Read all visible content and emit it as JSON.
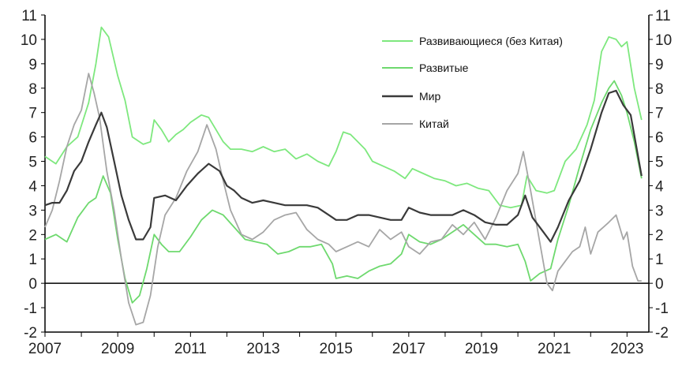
{
  "chart_data": {
    "type": "line",
    "title": "",
    "xlabel": "",
    "ylabel": "",
    "xlim": [
      2007.0,
      2023.6
    ],
    "ylim": [
      -2,
      11
    ],
    "x_ticks": [
      "2007",
      "2009",
      "2011",
      "2013",
      "2015",
      "2017",
      "2019",
      "2021",
      "2023"
    ],
    "y_ticks": [
      "-2",
      "-1",
      "0",
      "1",
      "2",
      "3",
      "4",
      "5",
      "6",
      "7",
      "8",
      "9",
      "10",
      "11"
    ],
    "grid": false,
    "legend_position": "top-right",
    "series": [
      {
        "name": "Развивающиеся (без Китая)",
        "color": "#7ee87e",
        "points": [
          [
            2007.0,
            5.2
          ],
          [
            2007.3,
            4.9
          ],
          [
            2007.6,
            5.6
          ],
          [
            2007.9,
            6.0
          ],
          [
            2008.2,
            7.4
          ],
          [
            2008.4,
            9.0
          ],
          [
            2008.55,
            10.5
          ],
          [
            2008.75,
            10.1
          ],
          [
            2009.0,
            8.5
          ],
          [
            2009.2,
            7.5
          ],
          [
            2009.4,
            6.0
          ],
          [
            2009.7,
            5.7
          ],
          [
            2009.9,
            5.8
          ],
          [
            2010.0,
            6.7
          ],
          [
            2010.2,
            6.3
          ],
          [
            2010.4,
            5.8
          ],
          [
            2010.6,
            6.1
          ],
          [
            2010.8,
            6.3
          ],
          [
            2011.0,
            6.6
          ],
          [
            2011.3,
            6.9
          ],
          [
            2011.5,
            6.8
          ],
          [
            2011.7,
            6.3
          ],
          [
            2011.9,
            5.8
          ],
          [
            2012.1,
            5.5
          ],
          [
            2012.4,
            5.5
          ],
          [
            2012.7,
            5.4
          ],
          [
            2013.0,
            5.6
          ],
          [
            2013.3,
            5.4
          ],
          [
            2013.6,
            5.5
          ],
          [
            2013.9,
            5.1
          ],
          [
            2014.2,
            5.3
          ],
          [
            2014.5,
            5.0
          ],
          [
            2014.8,
            4.8
          ],
          [
            2015.0,
            5.4
          ],
          [
            2015.2,
            6.2
          ],
          [
            2015.4,
            6.1
          ],
          [
            2015.6,
            5.8
          ],
          [
            2015.8,
            5.5
          ],
          [
            2016.0,
            5.0
          ],
          [
            2016.3,
            4.8
          ],
          [
            2016.6,
            4.6
          ],
          [
            2016.9,
            4.3
          ],
          [
            2017.1,
            4.7
          ],
          [
            2017.4,
            4.5
          ],
          [
            2017.7,
            4.3
          ],
          [
            2018.0,
            4.2
          ],
          [
            2018.3,
            4.0
          ],
          [
            2018.6,
            4.1
          ],
          [
            2018.9,
            3.9
          ],
          [
            2019.2,
            3.8
          ],
          [
            2019.5,
            3.2
          ],
          [
            2019.8,
            3.1
          ],
          [
            2020.1,
            3.2
          ],
          [
            2020.25,
            4.4
          ],
          [
            2020.5,
            3.8
          ],
          [
            2020.8,
            3.7
          ],
          [
            2021.0,
            3.8
          ],
          [
            2021.3,
            5.0
          ],
          [
            2021.6,
            5.5
          ],
          [
            2021.9,
            6.5
          ],
          [
            2022.1,
            7.5
          ],
          [
            2022.3,
            9.5
          ],
          [
            2022.5,
            10.1
          ],
          [
            2022.7,
            10.0
          ],
          [
            2022.85,
            9.7
          ],
          [
            2023.0,
            9.9
          ],
          [
            2023.2,
            8.0
          ],
          [
            2023.4,
            6.7
          ]
        ]
      },
      {
        "name": "Развитые",
        "color": "#6ed96e",
        "points": [
          [
            2007.0,
            1.8
          ],
          [
            2007.3,
            2.0
          ],
          [
            2007.6,
            1.7
          ],
          [
            2007.9,
            2.7
          ],
          [
            2008.2,
            3.3
          ],
          [
            2008.4,
            3.5
          ],
          [
            2008.6,
            4.4
          ],
          [
            2008.8,
            3.7
          ],
          [
            2009.0,
            1.8
          ],
          [
            2009.2,
            0.2
          ],
          [
            2009.4,
            -0.8
          ],
          [
            2009.6,
            -0.5
          ],
          [
            2009.8,
            0.6
          ],
          [
            2010.0,
            2.0
          ],
          [
            2010.2,
            1.6
          ],
          [
            2010.4,
            1.3
          ],
          [
            2010.7,
            1.3
          ],
          [
            2011.0,
            1.9
          ],
          [
            2011.3,
            2.6
          ],
          [
            2011.6,
            3.0
          ],
          [
            2011.9,
            2.8
          ],
          [
            2012.2,
            2.3
          ],
          [
            2012.5,
            1.8
          ],
          [
            2012.8,
            1.7
          ],
          [
            2013.1,
            1.6
          ],
          [
            2013.4,
            1.2
          ],
          [
            2013.7,
            1.3
          ],
          [
            2014.0,
            1.5
          ],
          [
            2014.3,
            1.5
          ],
          [
            2014.6,
            1.6
          ],
          [
            2014.9,
            0.8
          ],
          [
            2015.0,
            0.2
          ],
          [
            2015.3,
            0.3
          ],
          [
            2015.6,
            0.2
          ],
          [
            2015.9,
            0.5
          ],
          [
            2016.2,
            0.7
          ],
          [
            2016.5,
            0.8
          ],
          [
            2016.8,
            1.2
          ],
          [
            2017.0,
            2.0
          ],
          [
            2017.3,
            1.7
          ],
          [
            2017.6,
            1.6
          ],
          [
            2017.9,
            1.8
          ],
          [
            2018.2,
            2.1
          ],
          [
            2018.5,
            2.4
          ],
          [
            2018.8,
            2.0
          ],
          [
            2019.1,
            1.6
          ],
          [
            2019.4,
            1.6
          ],
          [
            2019.7,
            1.5
          ],
          [
            2020.0,
            1.6
          ],
          [
            2020.2,
            0.9
          ],
          [
            2020.35,
            0.1
          ],
          [
            2020.6,
            0.4
          ],
          [
            2020.9,
            0.6
          ],
          [
            2021.1,
            1.8
          ],
          [
            2021.4,
            3.2
          ],
          [
            2021.7,
            4.8
          ],
          [
            2022.0,
            6.3
          ],
          [
            2022.3,
            7.4
          ],
          [
            2022.5,
            8.0
          ],
          [
            2022.65,
            8.3
          ],
          [
            2022.85,
            7.7
          ],
          [
            2023.0,
            7.0
          ],
          [
            2023.2,
            5.8
          ],
          [
            2023.4,
            4.3
          ]
        ]
      },
      {
        "name": "Мир",
        "color": "#3a3a3a",
        "points": [
          [
            2007.0,
            3.2
          ],
          [
            2007.2,
            3.3
          ],
          [
            2007.4,
            3.3
          ],
          [
            2007.6,
            3.8
          ],
          [
            2007.8,
            4.6
          ],
          [
            2008.0,
            5.0
          ],
          [
            2008.2,
            5.8
          ],
          [
            2008.4,
            6.5
          ],
          [
            2008.55,
            7.0
          ],
          [
            2008.7,
            6.4
          ],
          [
            2008.9,
            5.0
          ],
          [
            2009.1,
            3.6
          ],
          [
            2009.3,
            2.6
          ],
          [
            2009.5,
            1.8
          ],
          [
            2009.7,
            1.8
          ],
          [
            2009.9,
            2.3
          ],
          [
            2010.0,
            3.5
          ],
          [
            2010.3,
            3.6
          ],
          [
            2010.6,
            3.4
          ],
          [
            2010.9,
            4.0
          ],
          [
            2011.2,
            4.5
          ],
          [
            2011.5,
            4.9
          ],
          [
            2011.8,
            4.6
          ],
          [
            2012.0,
            4.0
          ],
          [
            2012.2,
            3.8
          ],
          [
            2012.4,
            3.5
          ],
          [
            2012.7,
            3.3
          ],
          [
            2013.0,
            3.4
          ],
          [
            2013.3,
            3.3
          ],
          [
            2013.6,
            3.2
          ],
          [
            2013.9,
            3.2
          ],
          [
            2014.2,
            3.2
          ],
          [
            2014.5,
            3.1
          ],
          [
            2014.8,
            2.8
          ],
          [
            2015.0,
            2.6
          ],
          [
            2015.3,
            2.6
          ],
          [
            2015.6,
            2.8
          ],
          [
            2015.9,
            2.8
          ],
          [
            2016.2,
            2.7
          ],
          [
            2016.5,
            2.6
          ],
          [
            2016.8,
            2.6
          ],
          [
            2017.0,
            3.1
          ],
          [
            2017.3,
            2.9
          ],
          [
            2017.6,
            2.8
          ],
          [
            2017.9,
            2.8
          ],
          [
            2018.2,
            2.8
          ],
          [
            2018.5,
            3.0
          ],
          [
            2018.8,
            2.8
          ],
          [
            2019.1,
            2.5
          ],
          [
            2019.4,
            2.4
          ],
          [
            2019.7,
            2.4
          ],
          [
            2020.0,
            2.8
          ],
          [
            2020.2,
            3.6
          ],
          [
            2020.4,
            2.7
          ],
          [
            2020.7,
            2.1
          ],
          [
            2020.9,
            1.7
          ],
          [
            2021.1,
            2.3
          ],
          [
            2021.4,
            3.4
          ],
          [
            2021.7,
            4.2
          ],
          [
            2022.0,
            5.5
          ],
          [
            2022.3,
            7.0
          ],
          [
            2022.5,
            7.8
          ],
          [
            2022.7,
            7.9
          ],
          [
            2022.9,
            7.3
          ],
          [
            2023.1,
            6.9
          ],
          [
            2023.4,
            4.4
          ]
        ]
      },
      {
        "name": "Китай",
        "color": "#a6a6a6",
        "points": [
          [
            2007.0,
            2.3
          ],
          [
            2007.2,
            3.0
          ],
          [
            2007.4,
            4.2
          ],
          [
            2007.6,
            5.6
          ],
          [
            2007.8,
            6.5
          ],
          [
            2008.0,
            7.1
          ],
          [
            2008.2,
            8.6
          ],
          [
            2008.35,
            7.8
          ],
          [
            2008.5,
            6.8
          ],
          [
            2008.7,
            4.6
          ],
          [
            2008.9,
            3.0
          ],
          [
            2009.1,
            1.0
          ],
          [
            2009.3,
            -0.8
          ],
          [
            2009.5,
            -1.7
          ],
          [
            2009.7,
            -1.6
          ],
          [
            2009.9,
            -0.5
          ],
          [
            2010.1,
            1.5
          ],
          [
            2010.3,
            2.8
          ],
          [
            2010.6,
            3.5
          ],
          [
            2010.9,
            4.6
          ],
          [
            2011.2,
            5.4
          ],
          [
            2011.45,
            6.5
          ],
          [
            2011.7,
            5.5
          ],
          [
            2011.9,
            4.2
          ],
          [
            2012.1,
            3.0
          ],
          [
            2012.4,
            2.0
          ],
          [
            2012.7,
            1.8
          ],
          [
            2013.0,
            2.1
          ],
          [
            2013.3,
            2.6
          ],
          [
            2013.6,
            2.8
          ],
          [
            2013.9,
            2.9
          ],
          [
            2014.2,
            2.2
          ],
          [
            2014.5,
            1.8
          ],
          [
            2014.8,
            1.6
          ],
          [
            2015.0,
            1.3
          ],
          [
            2015.3,
            1.5
          ],
          [
            2015.6,
            1.7
          ],
          [
            2015.9,
            1.5
          ],
          [
            2016.2,
            2.2
          ],
          [
            2016.5,
            1.8
          ],
          [
            2016.8,
            2.1
          ],
          [
            2017.0,
            1.5
          ],
          [
            2017.3,
            1.2
          ],
          [
            2017.6,
            1.7
          ],
          [
            2017.9,
            1.8
          ],
          [
            2018.2,
            2.4
          ],
          [
            2018.5,
            2.0
          ],
          [
            2018.8,
            2.5
          ],
          [
            2019.1,
            1.8
          ],
          [
            2019.4,
            2.7
          ],
          [
            2019.7,
            3.8
          ],
          [
            2020.0,
            4.5
          ],
          [
            2020.15,
            5.4
          ],
          [
            2020.35,
            3.8
          ],
          [
            2020.6,
            1.7
          ],
          [
            2020.8,
            0.0
          ],
          [
            2020.95,
            -0.3
          ],
          [
            2021.1,
            0.5
          ],
          [
            2021.3,
            0.9
          ],
          [
            2021.5,
            1.3
          ],
          [
            2021.7,
            1.5
          ],
          [
            2021.85,
            2.3
          ],
          [
            2022.0,
            1.2
          ],
          [
            2022.2,
            2.1
          ],
          [
            2022.5,
            2.5
          ],
          [
            2022.7,
            2.8
          ],
          [
            2022.9,
            1.8
          ],
          [
            2023.0,
            2.1
          ],
          [
            2023.15,
            0.7
          ],
          [
            2023.3,
            0.1
          ],
          [
            2023.4,
            0.1
          ]
        ]
      }
    ]
  }
}
